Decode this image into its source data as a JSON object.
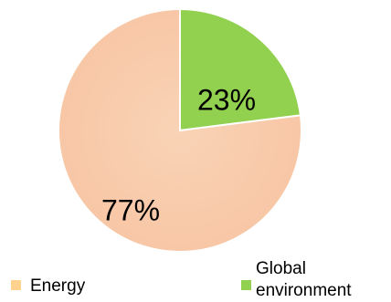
{
  "chart_data": {
    "type": "pie",
    "categories": [
      "Energy",
      "Global environment"
    ],
    "values": [
      77,
      23
    ],
    "data_labels": [
      "77%",
      "23%"
    ],
    "colors": [
      "#F8CBAD",
      "#92D050"
    ],
    "legend": {
      "placement": "bottom",
      "entries": [
        {
          "label_lines": [
            "Energy"
          ],
          "color": "#FFD28F"
        },
        {
          "label_lines": [
            "Global",
            "environment"
          ],
          "color": "#92D050"
        }
      ]
    }
  }
}
